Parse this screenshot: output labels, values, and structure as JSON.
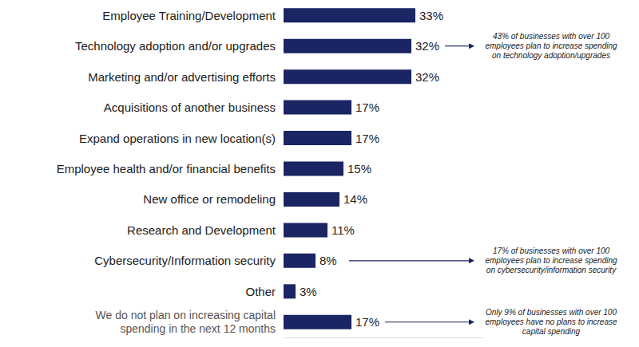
{
  "chart_data": {
    "type": "bar",
    "orientation": "horizontal",
    "categories": [
      "Employee Training/Development",
      "Technology adoption and/or upgrades",
      "Marketing and/or advertising efforts",
      "Acquisitions of another business",
      "Expand operations in new location(s)",
      "Employee health and/or financial benefits",
      "New office or remodeling",
      "Research and Development",
      "Cybersecurity/Information security",
      "Other",
      "We do not plan on increasing capital\nspending in the next 12 months"
    ],
    "values": [
      33,
      32,
      32,
      17,
      17,
      15,
      14,
      11,
      8,
      3,
      17
    ],
    "value_labels": [
      "33%",
      "32%",
      "32%",
      "17%",
      "17%",
      "15%",
      "14%",
      "11%",
      "8%",
      "3%",
      "17%"
    ],
    "color": "#1b2563",
    "xlim": [
      0,
      50
    ],
    "grid": false,
    "data_labels": true,
    "tick_labels": "y",
    "annotations": [
      {
        "category": "Technology adoption and/or upgrades",
        "text": "43% of businesses with over 100\nemployees plan to increase spending\non technology adoption/upgrades"
      },
      {
        "category": "Cybersecurity/Information security",
        "text": "17% of businesses with over 100\nemployees plan to increase spending\non cybersecurity/information security"
      },
      {
        "category": "We do not plan on increasing capital\nspending in the next 12 months",
        "text": "Only 9% of businesses with over 100\nemployees have no plans to increase\ncapital spending"
      }
    ]
  }
}
